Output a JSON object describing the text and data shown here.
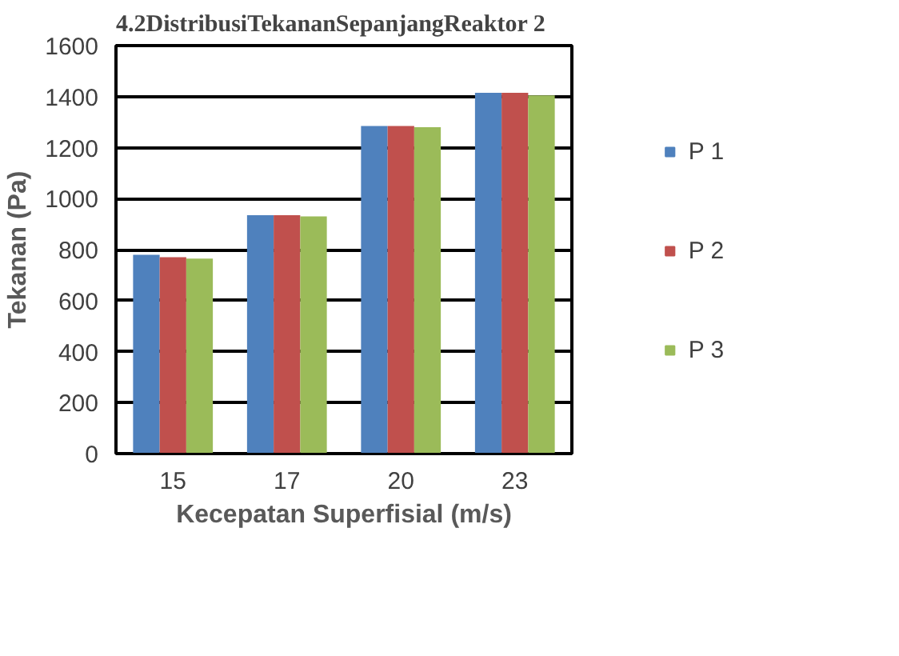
{
  "chart_data": {
    "type": "bar",
    "title": "4.2DistribusiTekananSepanjangReaktor 2",
    "xlabel": "Kecepatan Superfisial (m/s)",
    "ylabel": "Tekanan (Pa)",
    "categories": [
      "15",
      "17",
      "20",
      "23"
    ],
    "series": [
      {
        "name": "P 1",
        "color": "#4f81bd",
        "values": [
          780,
          935,
          1285,
          1415
        ]
      },
      {
        "name": "P 2",
        "color": "#c0504d",
        "values": [
          770,
          935,
          1285,
          1415
        ]
      },
      {
        "name": "P 3",
        "color": "#9bbb59",
        "values": [
          765,
          930,
          1280,
          1405
        ]
      }
    ],
    "ylim": [
      0,
      1600
    ],
    "yticks": [
      0,
      200,
      400,
      600,
      800,
      1000,
      1200,
      1400,
      1600
    ],
    "grid": "y",
    "legend": "right"
  }
}
